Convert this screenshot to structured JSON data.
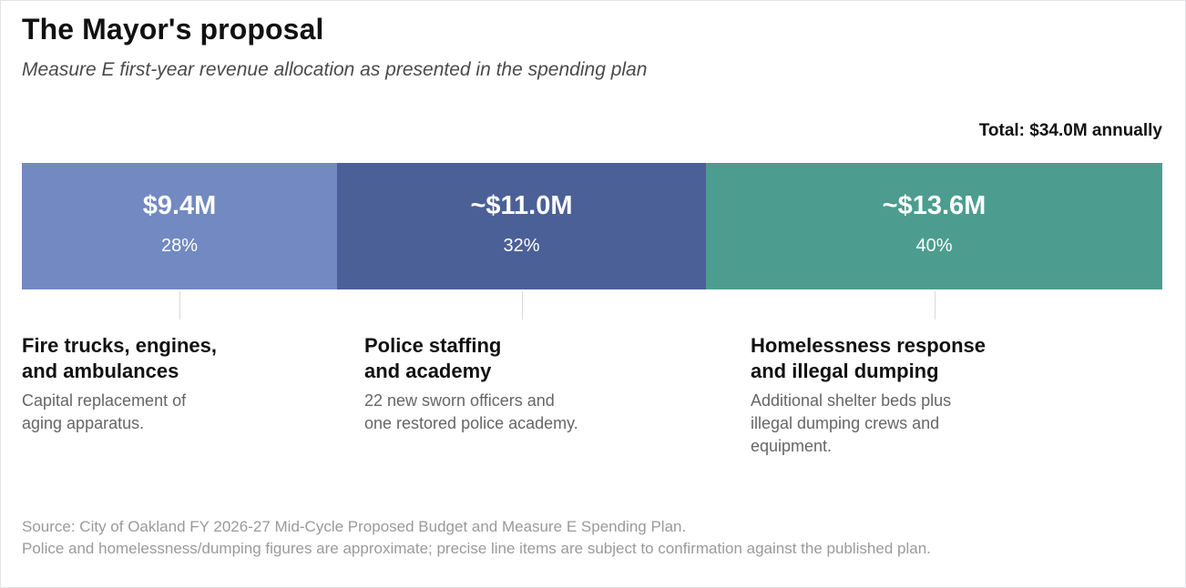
{
  "header": {
    "title": "The Mayor's proposal",
    "subtitle": "Measure E first-year revenue allocation as presented in the spending plan",
    "total_label": "Total: $34.0M annually"
  },
  "chart_data": {
    "type": "bar",
    "orientation": "horizontal-stacked",
    "title": "The Mayor's proposal",
    "subtitle": "Measure E first-year revenue allocation as presented in the spending plan",
    "total": 34.0,
    "unit": "$M",
    "segments": [
      {
        "name": "Fire trucks, engines,\nand ambulances",
        "value": 9.4,
        "amount_label": "$9.4M",
        "percent": 28,
        "percent_label": "28%",
        "description": "Capital replacement of\naging apparatus.",
        "color": "#7289c1"
      },
      {
        "name": "Police staffing\nand academy",
        "value": 11.0,
        "amount_label": "~$11.0M",
        "percent": 32,
        "percent_label": "32%",
        "description": "22 new sworn officers and\none restored police academy.",
        "color": "#4b6096"
      },
      {
        "name": "Homelessness response\nand illegal dumping",
        "value": 13.6,
        "amount_label": "~$13.6M",
        "percent": 40,
        "percent_label": "40%",
        "description": "Additional shelter beds plus\nillegal dumping crews and\nequipment.",
        "color": "#4c9d8f"
      }
    ]
  },
  "footer": {
    "source_line1": "Source: City of Oakland FY 2026-27 Mid-Cycle Proposed Budget and Measure E Spending Plan.",
    "source_line2": "Police and homelessness/dumping figures are approximate; precise line items are subject to confirmation against the published plan."
  }
}
